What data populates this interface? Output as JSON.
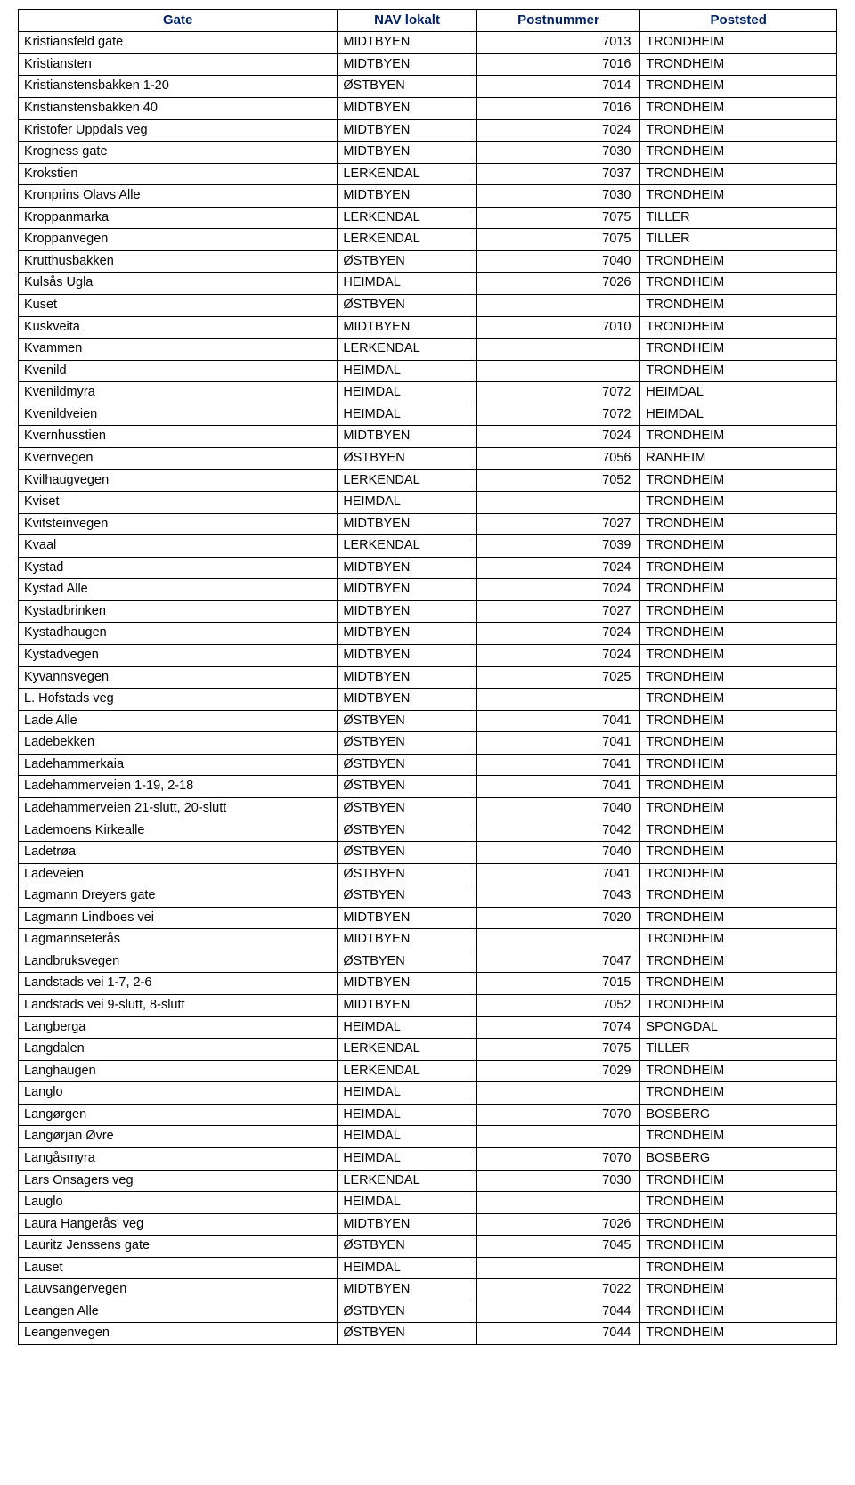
{
  "table": {
    "header_color": "#002060",
    "border_color": "#000000",
    "columns": [
      {
        "label": "Gate",
        "width_pct": 39
      },
      {
        "label": "NAV lokalt",
        "width_pct": 17
      },
      {
        "label": "Postnummer",
        "width_pct": 20
      },
      {
        "label": "Poststed",
        "width_pct": 24
      }
    ],
    "rows": [
      [
        "Kristiansfeld gate",
        "MIDTBYEN",
        "7013",
        "TRONDHEIM"
      ],
      [
        "Kristiansten",
        "MIDTBYEN",
        "7016",
        "TRONDHEIM"
      ],
      [
        "Kristianstensbakken 1-20",
        "ØSTBYEN",
        "7014",
        "TRONDHEIM"
      ],
      [
        "Kristianstensbakken 40",
        "MIDTBYEN",
        "7016",
        "TRONDHEIM"
      ],
      [
        "Kristofer Uppdals veg",
        "MIDTBYEN",
        "7024",
        "TRONDHEIM"
      ],
      [
        "Krogness gate",
        "MIDTBYEN",
        "7030",
        "TRONDHEIM"
      ],
      [
        "Krokstien",
        "LERKENDAL",
        "7037",
        "TRONDHEIM"
      ],
      [
        "Kronprins Olavs Alle",
        "MIDTBYEN",
        "7030",
        "TRONDHEIM"
      ],
      [
        "Kroppanmarka",
        "LERKENDAL",
        "7075",
        "TILLER"
      ],
      [
        "Kroppanvegen",
        "LERKENDAL",
        "7075",
        "TILLER"
      ],
      [
        "Krutthusbakken",
        "ØSTBYEN",
        "7040",
        "TRONDHEIM"
      ],
      [
        "Kulsås Ugla",
        "HEIMDAL",
        "7026",
        "TRONDHEIM"
      ],
      [
        "Kuset",
        "ØSTBYEN",
        "",
        "TRONDHEIM"
      ],
      [
        "Kuskveita",
        "MIDTBYEN",
        "7010",
        "TRONDHEIM"
      ],
      [
        "Kvammen",
        "LERKENDAL",
        "",
        "TRONDHEIM"
      ],
      [
        "Kvenild",
        "HEIMDAL",
        "",
        "TRONDHEIM"
      ],
      [
        "Kvenildmyra",
        "HEIMDAL",
        "7072",
        "HEIMDAL"
      ],
      [
        "Kvenildveien",
        "HEIMDAL",
        "7072",
        "HEIMDAL"
      ],
      [
        "Kvernhusstien",
        "MIDTBYEN",
        "7024",
        "TRONDHEIM"
      ],
      [
        "Kvernvegen",
        "ØSTBYEN",
        "7056",
        "RANHEIM"
      ],
      [
        "Kvilhaugvegen",
        "LERKENDAL",
        "7052",
        "TRONDHEIM"
      ],
      [
        "Kviset",
        "HEIMDAL",
        "",
        "TRONDHEIM"
      ],
      [
        "Kvitsteinvegen",
        "MIDTBYEN",
        "7027",
        "TRONDHEIM"
      ],
      [
        "Kvaal",
        "LERKENDAL",
        "7039",
        "TRONDHEIM"
      ],
      [
        "Kystad",
        "MIDTBYEN",
        "7024",
        "TRONDHEIM"
      ],
      [
        "Kystad Alle",
        "MIDTBYEN",
        "7024",
        "TRONDHEIM"
      ],
      [
        "Kystadbrinken",
        "MIDTBYEN",
        "7027",
        "TRONDHEIM"
      ],
      [
        "Kystadhaugen",
        "MIDTBYEN",
        "7024",
        "TRONDHEIM"
      ],
      [
        "Kystadvegen",
        "MIDTBYEN",
        "7024",
        "TRONDHEIM"
      ],
      [
        "Kyvannsvegen",
        "MIDTBYEN",
        "7025",
        "TRONDHEIM"
      ],
      [
        "L. Hofstads veg",
        "MIDTBYEN",
        "",
        "TRONDHEIM"
      ],
      [
        "Lade Alle",
        "ØSTBYEN",
        "7041",
        "TRONDHEIM"
      ],
      [
        "Ladebekken",
        "ØSTBYEN",
        "7041",
        "TRONDHEIM"
      ],
      [
        "Ladehammerkaia",
        "ØSTBYEN",
        "7041",
        "TRONDHEIM"
      ],
      [
        "Ladehammerveien 1-19, 2-18",
        "ØSTBYEN",
        "7041",
        "TRONDHEIM"
      ],
      [
        "Ladehammerveien 21-slutt, 20-slutt",
        "ØSTBYEN",
        "7040",
        "TRONDHEIM"
      ],
      [
        "Lademoens Kirkealle",
        "ØSTBYEN",
        "7042",
        "TRONDHEIM"
      ],
      [
        "Ladetrøa",
        "ØSTBYEN",
        "7040",
        "TRONDHEIM"
      ],
      [
        "Ladeveien",
        "ØSTBYEN",
        "7041",
        "TRONDHEIM"
      ],
      [
        "Lagmann Dreyers gate",
        "ØSTBYEN",
        "7043",
        "TRONDHEIM"
      ],
      [
        "Lagmann Lindboes vei",
        "MIDTBYEN",
        "7020",
        "TRONDHEIM"
      ],
      [
        "Lagmannseterås",
        "MIDTBYEN",
        "",
        "TRONDHEIM"
      ],
      [
        "Landbruksvegen",
        "ØSTBYEN",
        "7047",
        "TRONDHEIM"
      ],
      [
        "Landstads vei 1-7, 2-6",
        "MIDTBYEN",
        "7015",
        "TRONDHEIM"
      ],
      [
        "Landstads vei 9-slutt, 8-slutt",
        "MIDTBYEN",
        "7052",
        "TRONDHEIM"
      ],
      [
        "Langberga",
        "HEIMDAL",
        "7074",
        "SPONGDAL"
      ],
      [
        "Langdalen",
        "LERKENDAL",
        "7075",
        "TILLER"
      ],
      [
        "Langhaugen",
        "LERKENDAL",
        "7029",
        "TRONDHEIM"
      ],
      [
        "Langlo",
        "HEIMDAL",
        "",
        "TRONDHEIM"
      ],
      [
        "Langørgen",
        "HEIMDAL",
        "7070",
        "BOSBERG"
      ],
      [
        "Langørjan Øvre",
        "HEIMDAL",
        "",
        "TRONDHEIM"
      ],
      [
        "Langåsmyra",
        "HEIMDAL",
        "7070",
        "BOSBERG"
      ],
      [
        "Lars Onsagers veg",
        "LERKENDAL",
        "7030",
        "TRONDHEIM"
      ],
      [
        "Lauglo",
        "HEIMDAL",
        "",
        "TRONDHEIM"
      ],
      [
        "Laura Hangerås' veg",
        "MIDTBYEN",
        "7026",
        "TRONDHEIM"
      ],
      [
        "Lauritz Jenssens gate",
        "ØSTBYEN",
        "7045",
        "TRONDHEIM"
      ],
      [
        "Lauset",
        "HEIMDAL",
        "",
        "TRONDHEIM"
      ],
      [
        "Lauvsangervegen",
        "MIDTBYEN",
        "7022",
        "TRONDHEIM"
      ],
      [
        "Leangen Alle",
        "ØSTBYEN",
        "7044",
        "TRONDHEIM"
      ],
      [
        "Leangenvegen",
        "ØSTBYEN",
        "7044",
        "TRONDHEIM"
      ]
    ]
  }
}
